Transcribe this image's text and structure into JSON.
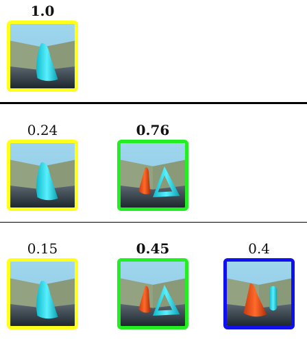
{
  "colors": {
    "yellow": "#ffff1e",
    "green": "#22ee22",
    "blue": "#1010ee"
  },
  "rows": [
    {
      "cells": [
        {
          "score": "1.0",
          "bold": true,
          "frame": "yellow",
          "scene": "cone"
        }
      ]
    },
    {
      "cells": [
        {
          "score": "0.24",
          "bold": false,
          "frame": "yellow",
          "scene": "cone"
        },
        {
          "score": "0.76",
          "bold": true,
          "frame": "green",
          "scene": "cone-triangle"
        }
      ]
    },
    {
      "cells": [
        {
          "score": "0.15",
          "bold": false,
          "frame": "yellow",
          "scene": "cone"
        },
        {
          "score": "0.45",
          "bold": true,
          "frame": "green",
          "scene": "cone-triangle"
        },
        {
          "score": "0.4",
          "bold": false,
          "frame": "blue",
          "scene": "cone-cylinder"
        }
      ]
    }
  ]
}
